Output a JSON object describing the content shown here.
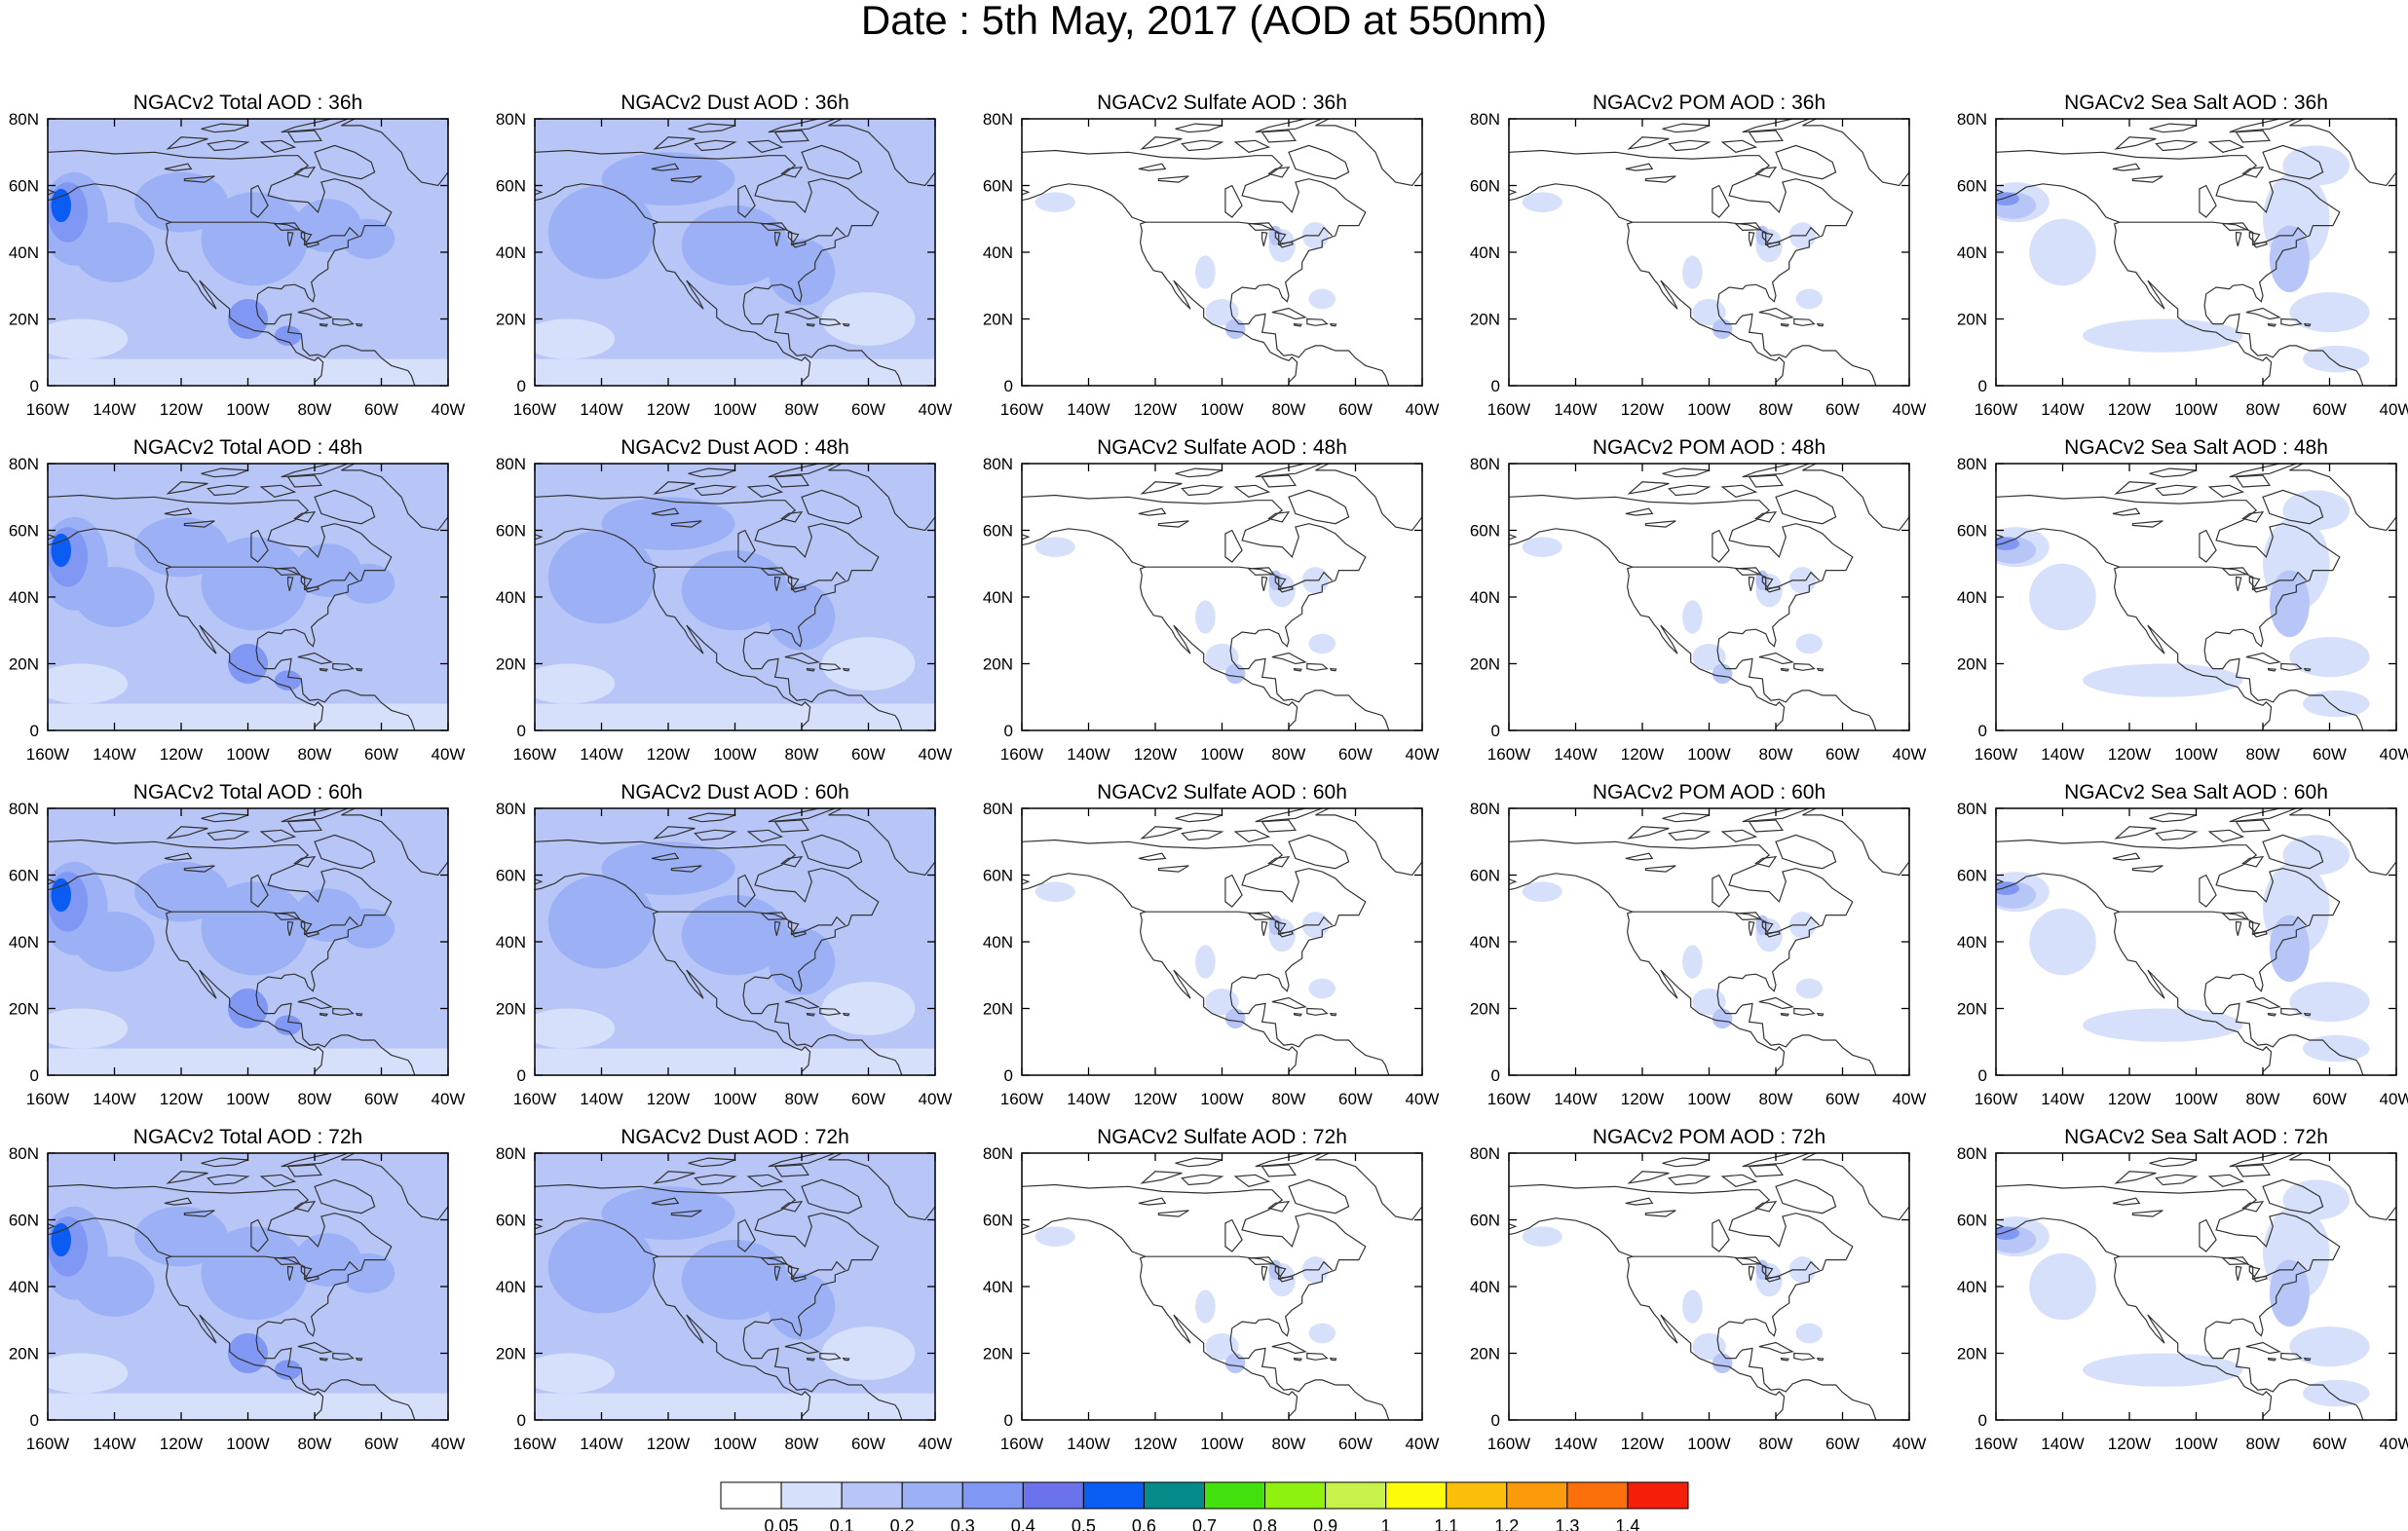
{
  "title": "Date : 5th May, 2017 (AOD at 550nm)",
  "x_ticks": [
    "160W",
    "140W",
    "120W",
    "100W",
    "80W",
    "60W",
    "40W"
  ],
  "y_ticks": [
    "0",
    "20N",
    "40N",
    "60N",
    "80N"
  ],
  "panels": [
    {
      "title": "NGACv2 Total AOD : 36h",
      "level": "high"
    },
    {
      "title": "NGACv2 Dust AOD : 36h",
      "level": "medium"
    },
    {
      "title": "NGACv2 Sulfate AOD : 36h",
      "level": "sparse"
    },
    {
      "title": "NGACv2 POM AOD : 36h",
      "level": "sparse"
    },
    {
      "title": "NGACv2 Sea Salt AOD : 36h",
      "level": "seasalt"
    },
    {
      "title": "NGACv2 Total AOD : 48h",
      "level": "high"
    },
    {
      "title": "NGACv2 Dust AOD : 48h",
      "level": "medium"
    },
    {
      "title": "NGACv2 Sulfate AOD : 48h",
      "level": "sparse"
    },
    {
      "title": "NGACv2 POM AOD : 48h",
      "level": "sparse"
    },
    {
      "title": "NGACv2 Sea Salt AOD : 48h",
      "level": "seasalt"
    },
    {
      "title": "NGACv2 Total AOD : 60h",
      "level": "high"
    },
    {
      "title": "NGACv2 Dust AOD : 60h",
      "level": "medium"
    },
    {
      "title": "NGACv2 Sulfate AOD : 60h",
      "level": "sparse"
    },
    {
      "title": "NGACv2 POM AOD : 60h",
      "level": "sparse"
    },
    {
      "title": "NGACv2 Sea Salt AOD : 60h",
      "level": "seasalt"
    },
    {
      "title": "NGACv2 Total AOD : 72h",
      "level": "high"
    },
    {
      "title": "NGACv2 Dust AOD : 72h",
      "level": "medium"
    },
    {
      "title": "NGACv2 Sulfate AOD : 72h",
      "level": "sparse"
    },
    {
      "title": "NGACv2 POM AOD : 72h",
      "level": "sparse"
    },
    {
      "title": "NGACv2 Sea Salt  AOD : 72h",
      "level": "seasalt"
    }
  ],
  "colorbar": {
    "labels": [
      "0.05",
      "0.1",
      "0.2",
      "0.3",
      "0.4",
      "0.5",
      "0.6",
      "0.7",
      "0.8",
      "0.9",
      "1",
      "1.1",
      "1.2",
      "1.3",
      "1.4"
    ],
    "colors": [
      "#ffffff",
      "#d6e0fb",
      "#b7c6f7",
      "#9cb1f5",
      "#8098f3",
      "#6a73ec",
      "#0a5cf2",
      "#068b8b",
      "#43e20e",
      "#8ef20e",
      "#c8f24a",
      "#fbfb0a",
      "#fbbf0a",
      "#fb9a0a",
      "#fb700a",
      "#f41e0a"
    ]
  }
}
